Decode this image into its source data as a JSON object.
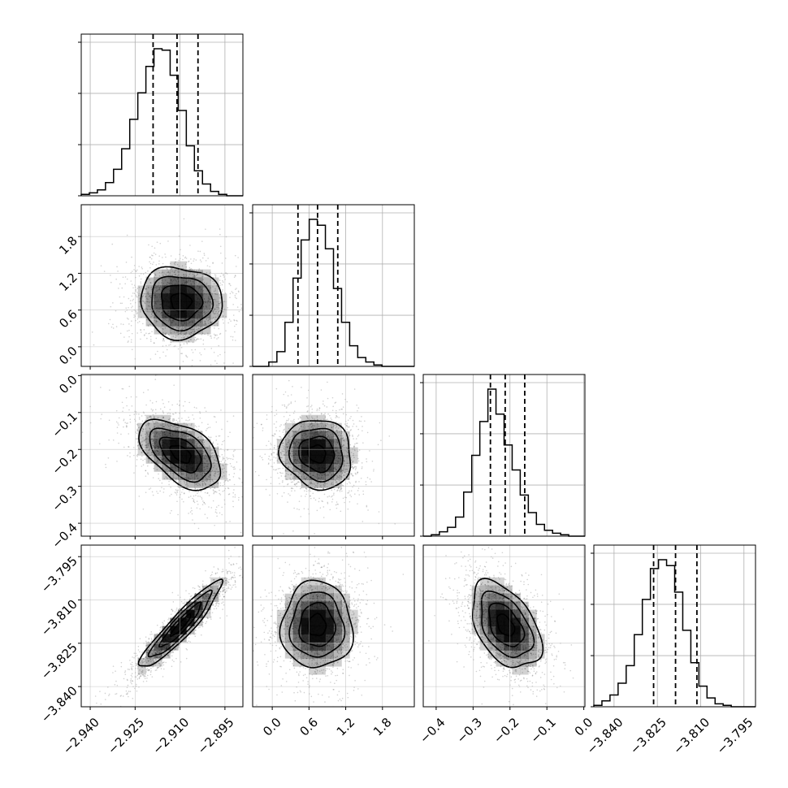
{
  "chart_data": {
    "type": "corner",
    "title": "",
    "parameters": [
      {
        "range": [
          -2.943,
          -2.889
        ],
        "ticks": [
          -2.94,
          -2.925,
          -2.91,
          -2.895
        ],
        "tick_labels": [
          "−2.940",
          "−2.925",
          "−2.910",
          "−2.895"
        ],
        "quantiles": [
          -2.919,
          -2.911,
          -2.904
        ],
        "hist": [
          1,
          2,
          4,
          9,
          18,
          32,
          52,
          70,
          88,
          100,
          99,
          82,
          58,
          34,
          17,
          8,
          3,
          1,
          0,
          0
        ]
      },
      {
        "range": [
          -0.32,
          2.32
        ],
        "ticks": [
          0.0,
          0.6,
          1.2,
          1.8
        ],
        "tick_labels": [
          "0.0",
          "0.6",
          "1.2",
          "1.8"
        ],
        "quantiles": [
          0.42,
          0.74,
          1.07
        ],
        "hist": [
          0,
          0,
          3,
          10,
          30,
          60,
          86,
          100,
          96,
          80,
          53,
          30,
          14,
          6,
          3,
          1,
          0,
          0,
          0,
          0
        ]
      },
      {
        "range": [
          -0.435,
          0.003
        ],
        "ticks": [
          -0.4,
          -0.3,
          -0.2,
          -0.1,
          0.0
        ],
        "tick_labels": [
          "−0.4",
          "−0.3",
          "−0.2",
          "−0.1",
          "0.0"
        ],
        "quantiles": [
          -0.253,
          -0.213,
          -0.16
        ],
        "hist": [
          0,
          1,
          3,
          6,
          13,
          30,
          55,
          78,
          100,
          83,
          62,
          45,
          28,
          16,
          8,
          4,
          2,
          1,
          0,
          0
        ]
      },
      {
        "range": [
          -3.847,
          -3.791
        ],
        "ticks": [
          -3.84,
          -3.825,
          -3.81,
          -3.795
        ],
        "tick_labels": [
          "−3.840",
          "−3.825",
          "−3.810",
          "−3.795"
        ],
        "quantiles": [
          -3.8263,
          -3.8187,
          -3.8113
        ],
        "hist": [
          1,
          4,
          8,
          16,
          28,
          49,
          73,
          94,
          100,
          96,
          78,
          52,
          30,
          14,
          6,
          2,
          1,
          0,
          0,
          0
        ]
      }
    ],
    "hist_y_ticks": [
      0.0,
      0.333,
      0.667,
      1.0
    ],
    "pairs": [
      {
        "col": 0,
        "row": 1,
        "center": [
          -2.9097,
          0.73
        ],
        "sigma": [
          0.0068,
          0.29
        ],
        "rho": -0.05
      },
      {
        "col": 0,
        "row": 2,
        "center": [
          -2.9097,
          -0.212
        ],
        "sigma": [
          0.0068,
          0.047
        ],
        "rho": -0.5
      },
      {
        "col": 1,
        "row": 2,
        "center": [
          0.73,
          -0.212
        ],
        "sigma": [
          0.29,
          0.047
        ],
        "rho": -0.1
      },
      {
        "col": 0,
        "row": 3,
        "center": [
          -2.9097,
          -3.8188
        ],
        "sigma": [
          0.0068,
          0.0075
        ],
        "rho": 0.93
      },
      {
        "col": 1,
        "row": 3,
        "center": [
          0.73,
          -3.8188
        ],
        "sigma": [
          0.29,
          0.0075
        ],
        "rho": 0.0
      },
      {
        "col": 2,
        "row": 3,
        "center": [
          -0.212,
          -3.8188
        ],
        "sigma": [
          0.047,
          0.0075
        ],
        "rho": -0.45
      }
    ],
    "contour_levels": [
      0.5,
      1.0,
      1.5,
      2.0
    ],
    "grid": true,
    "legend": "none",
    "colors": {
      "line": "#000000",
      "density": "#000000",
      "grid": "#b0b0b0",
      "points": "#000000"
    }
  }
}
